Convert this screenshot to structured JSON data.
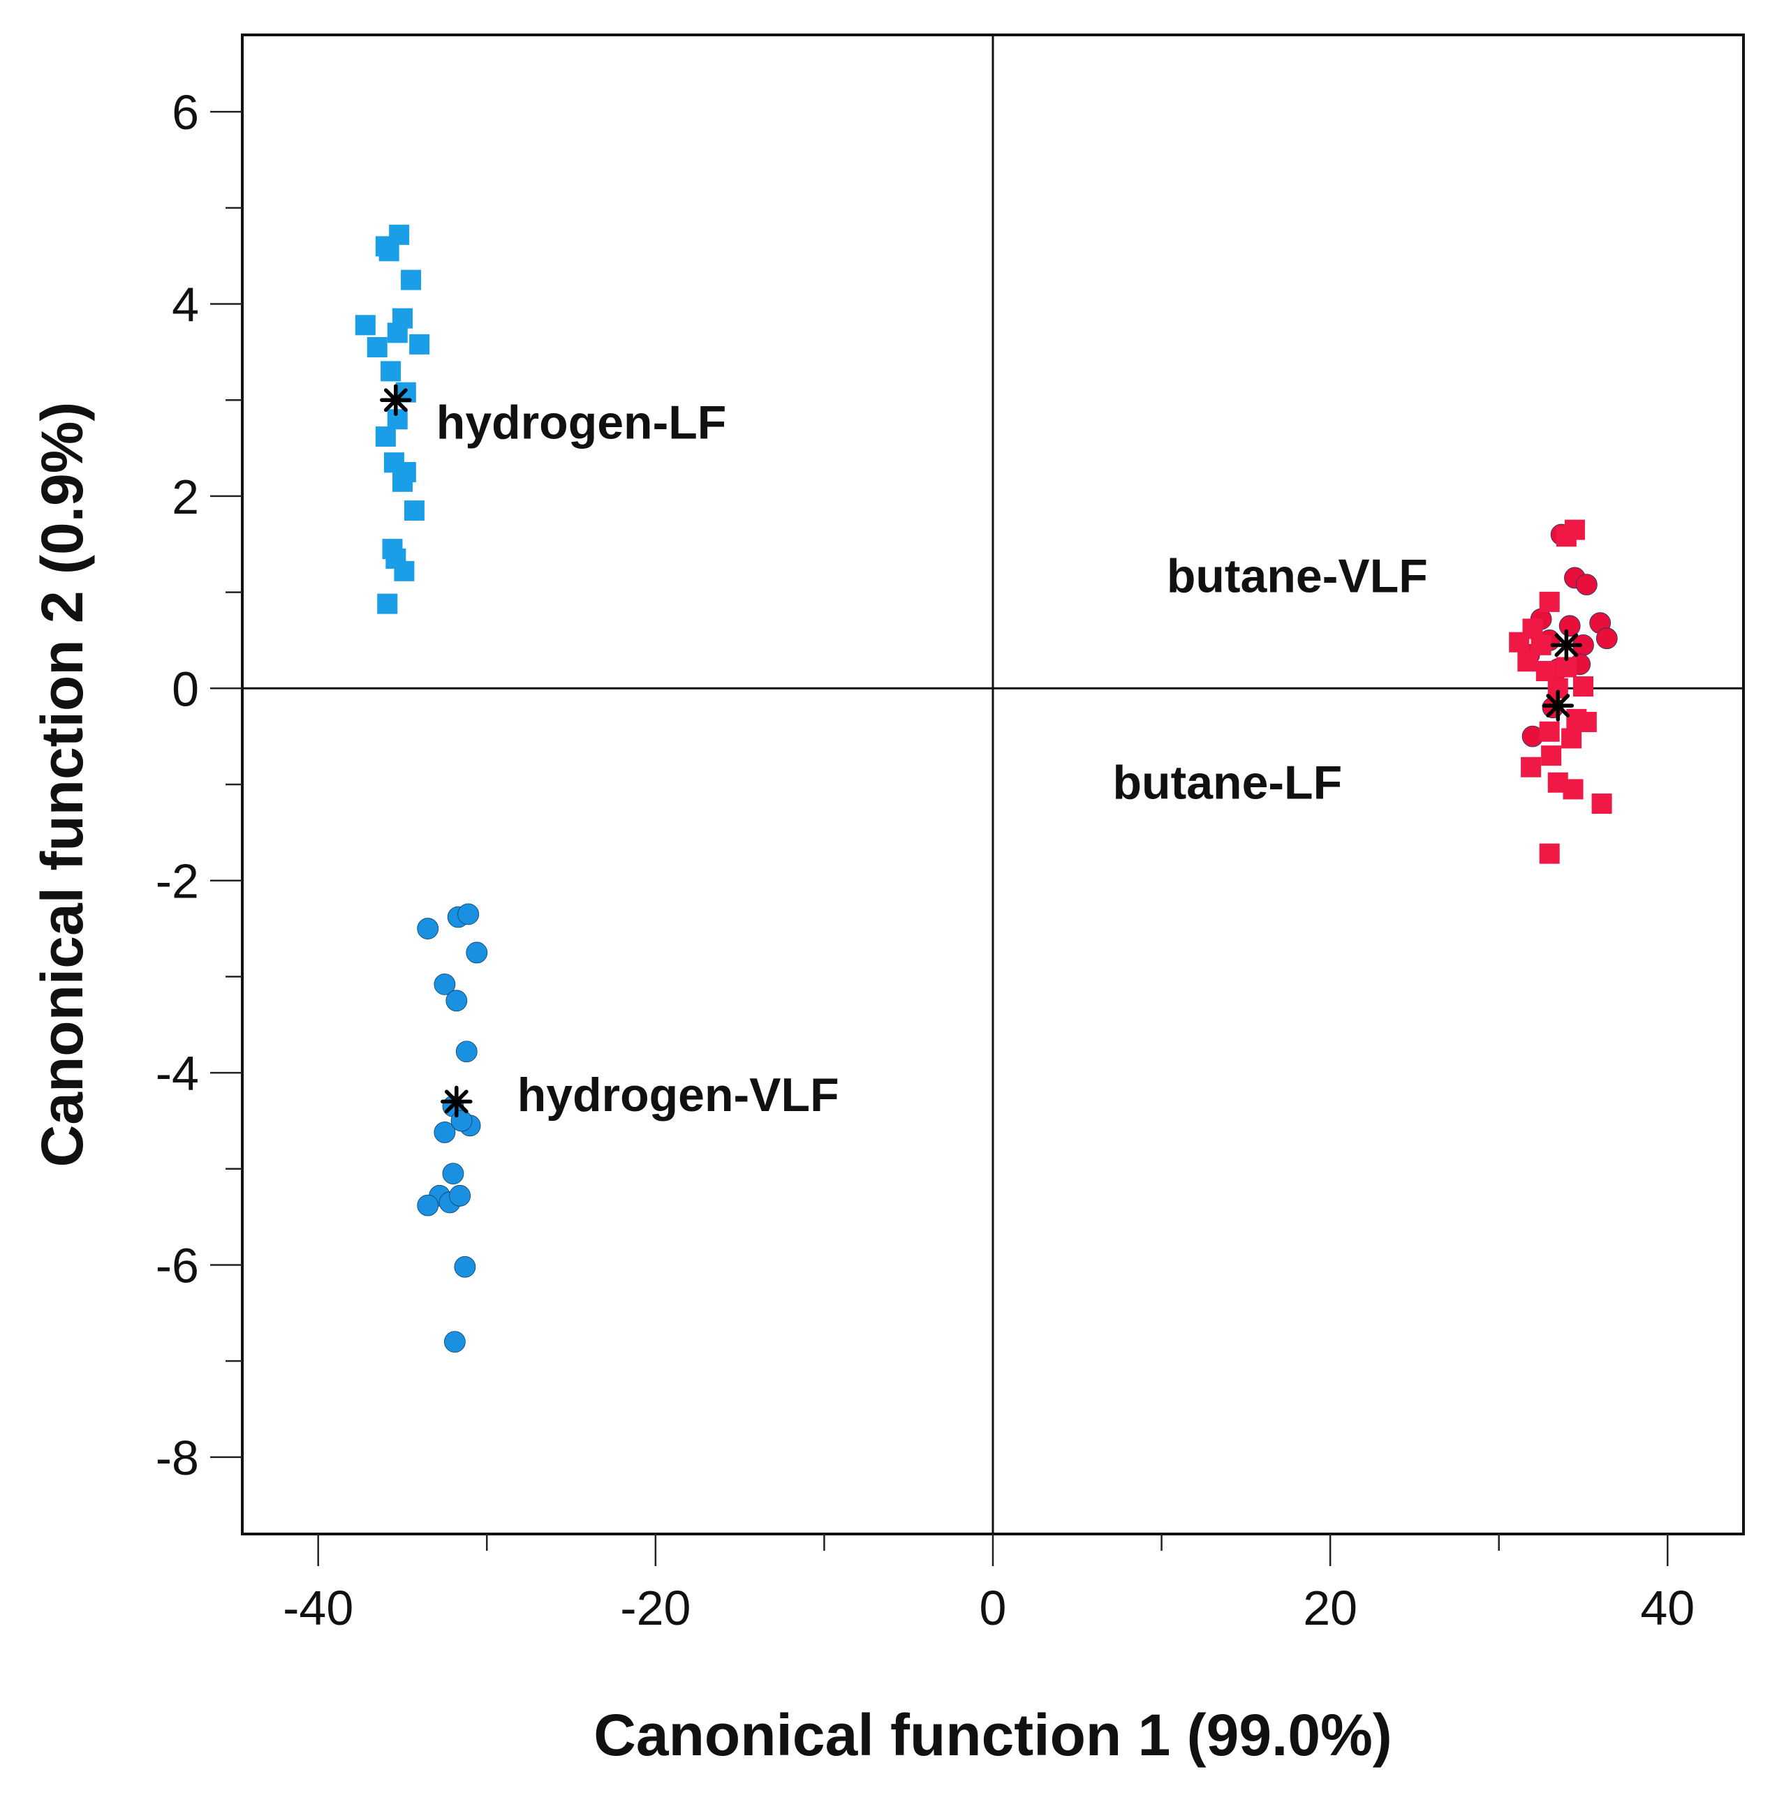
{
  "chart_data": {
    "type": "scatter",
    "title": "",
    "xlabel": "Canonical function 1 (99.0%)",
    "ylabel": "Canonical function 2 (0.9%)",
    "xlim": [
      -44.5,
      44.5
    ],
    "ylim": [
      -8.8,
      6.8
    ],
    "x_ticks": [
      -40,
      -20,
      0,
      20,
      40
    ],
    "x_tick_labels": [
      "-40",
      "-20",
      "0",
      "20",
      "40"
    ],
    "y_ticks": [
      -8,
      -6,
      -4,
      -2,
      0,
      2,
      4,
      6
    ],
    "y_tick_labels": [
      "-8",
      "-6",
      "-4",
      "-2",
      "0",
      "2",
      "4",
      "6"
    ],
    "reference_lines": {
      "x": 0,
      "y": 0
    },
    "series": [
      {
        "name": "hydrogen-LF",
        "marker": "square",
        "color": "#1a9ee8",
        "centroid": [
          -35.4,
          3.0
        ],
        "points": [
          [
            -36.0,
            4.6
          ],
          [
            -35.8,
            4.55
          ],
          [
            -35.2,
            4.72
          ],
          [
            -34.5,
            4.25
          ],
          [
            -37.2,
            3.78
          ],
          [
            -35.0,
            3.85
          ],
          [
            -36.5,
            3.55
          ],
          [
            -35.3,
            3.7
          ],
          [
            -34.0,
            3.58
          ],
          [
            -35.7,
            3.3
          ],
          [
            -34.8,
            3.08
          ],
          [
            -35.3,
            2.8
          ],
          [
            -36.0,
            2.62
          ],
          [
            -35.5,
            2.35
          ],
          [
            -34.8,
            2.25
          ],
          [
            -35.0,
            2.15
          ],
          [
            -34.3,
            1.85
          ],
          [
            -35.6,
            1.45
          ],
          [
            -35.4,
            1.35
          ],
          [
            -34.9,
            1.22
          ],
          [
            -35.9,
            0.88
          ]
        ]
      },
      {
        "name": "hydrogen-VLF",
        "marker": "circle",
        "color": "#1a90e0",
        "centroid": [
          -31.8,
          -4.3
        ],
        "points": [
          [
            -33.5,
            -2.5
          ],
          [
            -31.7,
            -2.38
          ],
          [
            -31.1,
            -2.35
          ],
          [
            -30.6,
            -2.75
          ],
          [
            -32.5,
            -3.08
          ],
          [
            -31.8,
            -3.25
          ],
          [
            -31.2,
            -3.78
          ],
          [
            -32.0,
            -4.35
          ],
          [
            -31.0,
            -4.55
          ],
          [
            -32.5,
            -4.62
          ],
          [
            -31.5,
            -4.5
          ],
          [
            -32.0,
            -5.05
          ],
          [
            -32.8,
            -5.28
          ],
          [
            -33.5,
            -5.38
          ],
          [
            -32.2,
            -5.35
          ],
          [
            -31.6,
            -5.28
          ],
          [
            -31.3,
            -6.02
          ],
          [
            -31.9,
            -6.8
          ]
        ]
      },
      {
        "name": "butane-VLF",
        "marker": "circle",
        "color": "#e8103a",
        "centroid": [
          34.0,
          0.45
        ],
        "points": [
          [
            33.7,
            1.6
          ],
          [
            34.5,
            1.15
          ],
          [
            35.2,
            1.08
          ],
          [
            32.5,
            0.72
          ],
          [
            34.2,
            0.65
          ],
          [
            36.0,
            0.68
          ],
          [
            36.4,
            0.52
          ],
          [
            33.0,
            0.5
          ],
          [
            35.0,
            0.45
          ],
          [
            31.8,
            0.35
          ],
          [
            33.5,
            0.2
          ],
          [
            34.8,
            0.25
          ],
          [
            33.2,
            -0.2
          ],
          [
            32.0,
            -0.5
          ]
        ]
      },
      {
        "name": "butane-LF",
        "marker": "square",
        "color": "#f01845",
        "centroid": [
          33.5,
          -0.18
        ],
        "points": [
          [
            34.5,
            1.65
          ],
          [
            34.0,
            1.58
          ],
          [
            33.0,
            0.9
          ],
          [
            32.0,
            0.62
          ],
          [
            31.2,
            0.48
          ],
          [
            32.5,
            0.45
          ],
          [
            31.7,
            0.28
          ],
          [
            32.8,
            0.18
          ],
          [
            34.0,
            0.22
          ],
          [
            35.0,
            0.02
          ],
          [
            33.5,
            0.0
          ],
          [
            34.6,
            -0.32
          ],
          [
            35.2,
            -0.35
          ],
          [
            33.0,
            -0.45
          ],
          [
            34.3,
            -0.52
          ],
          [
            33.1,
            -0.7
          ],
          [
            31.9,
            -0.82
          ],
          [
            33.5,
            -0.98
          ],
          [
            34.4,
            -1.05
          ],
          [
            36.1,
            -1.2
          ],
          [
            33.0,
            -1.72
          ]
        ]
      }
    ],
    "annotations": [
      {
        "text": "hydrogen-LF",
        "x": -33.0,
        "y": 2.6
      },
      {
        "text": "hydrogen-VLF",
        "x": -28.2,
        "y": -4.4
      },
      {
        "text": "butane-VLF",
        "x": 10.3,
        "y": 1.0
      },
      {
        "text": "butane-LF",
        "x": 7.1,
        "y": -1.15
      }
    ]
  }
}
